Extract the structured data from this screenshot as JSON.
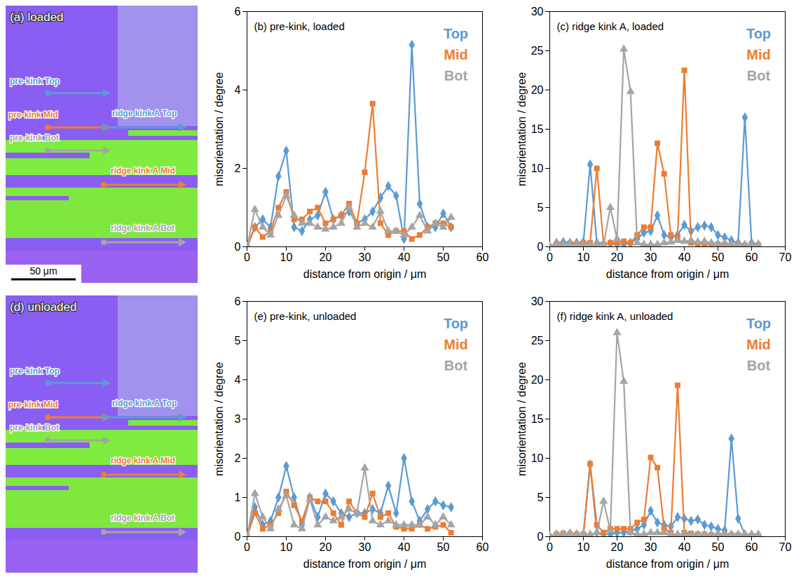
{
  "chart_data": [
    {
      "type": "line",
      "title": "(b) pre-kink, loaded",
      "xlabel": "distance from origin / μm",
      "ylabel": "misorientation / degree",
      "x": [
        0,
        2,
        4,
        6,
        8,
        10,
        12,
        14,
        16,
        18,
        20,
        22,
        24,
        26,
        28,
        30,
        32,
        34,
        36,
        38,
        40,
        42,
        44,
        46,
        48,
        50,
        52
      ],
      "xlim": [
        0,
        60
      ],
      "xticks": [
        0,
        10,
        20,
        30,
        40,
        50,
        60
      ],
      "ylim": [
        0,
        6
      ],
      "yticks": [
        0,
        2,
        4,
        6
      ],
      "grid": false,
      "legend": "top-right",
      "series": [
        {
          "name": "Top",
          "color": "#5b9bd5",
          "marker": "diamond",
          "values": [
            0,
            0.5,
            0.7,
            0.5,
            1.8,
            2.45,
            0.5,
            0.4,
            0.7,
            0.8,
            1.4,
            0.7,
            0.8,
            0.9,
            0.6,
            0.7,
            0.9,
            1.25,
            1.55,
            1.3,
            0.2,
            5.15,
            1.1,
            0.5,
            0.5,
            0.85,
            0.5
          ]
        },
        {
          "name": "Mid",
          "color": "#ed7d31",
          "marker": "square",
          "values": [
            0,
            0.5,
            0.25,
            0.4,
            1.0,
            1.4,
            0.7,
            0.7,
            0.9,
            1.0,
            0.6,
            0.7,
            0.8,
            1.1,
            0.6,
            1.9,
            3.65,
            0.6,
            0.3,
            0.4,
            0.4,
            0.2,
            0.3,
            0.5,
            0.6,
            0.6,
            0.5
          ]
        },
        {
          "name": "Bot",
          "color": "#a5a5a5",
          "marker": "triangle",
          "values": [
            0,
            0.95,
            0.5,
            0.3,
            0.8,
            1.3,
            0.8,
            0.6,
            0.6,
            0.5,
            0.45,
            0.5,
            0.6,
            1.0,
            0.5,
            0.6,
            0.5,
            0.9,
            0.4,
            0.4,
            0.3,
            0.5,
            0.8,
            0.4,
            0.6,
            0.5,
            0.75
          ]
        }
      ]
    },
    {
      "type": "line",
      "title": "(c) ridge kink A, loaded",
      "xlabel": "distance from origin / μm",
      "ylabel": "misorientation / degree",
      "x": [
        0,
        2,
        4,
        6,
        8,
        10,
        12,
        14,
        16,
        18,
        20,
        22,
        24,
        26,
        28,
        30,
        32,
        34,
        36,
        38,
        40,
        42,
        44,
        46,
        48,
        50,
        52,
        54,
        56,
        58,
        60,
        62
      ],
      "xlim": [
        0,
        70
      ],
      "xticks": [
        0,
        10,
        20,
        30,
        40,
        50,
        60,
        70
      ],
      "ylim": [
        0,
        30
      ],
      "yticks": [
        0,
        5,
        10,
        15,
        20,
        25,
        30
      ],
      "grid": false,
      "legend": "top-right",
      "series": [
        {
          "name": "Top",
          "color": "#5b9bd5",
          "marker": "diamond",
          "values": [
            0,
            0.5,
            0.6,
            0.5,
            0.5,
            0.6,
            10.5,
            0.5,
            0.4,
            0.4,
            0.3,
            0.3,
            0.5,
            1.0,
            1.8,
            2.0,
            4.0,
            1.5,
            1.2,
            1.5,
            2.8,
            2.0,
            2.5,
            2.7,
            2.5,
            1.5,
            1.2,
            0.8,
            0.5,
            16.5,
            0.5,
            0.3
          ]
        },
        {
          "name": "Mid",
          "color": "#ed7d31",
          "marker": "square",
          "values": [
            0,
            0.3,
            0.3,
            0.4,
            0.3,
            0.5,
            0.5,
            10,
            0.3,
            0.5,
            0.5,
            0.7,
            0.5,
            1.5,
            2.5,
            2.5,
            13.2,
            9.3,
            1.5,
            1.2,
            22.5,
            0.5,
            0.3,
            0.4,
            0.3,
            0.3,
            0.3,
            0.3,
            0.3,
            0.2,
            0.2,
            0.2
          ]
        },
        {
          "name": "Bot",
          "color": "#a5a5a5",
          "marker": "triangle",
          "values": [
            0,
            0.3,
            0.3,
            0.3,
            0.3,
            0.3,
            0.3,
            0.3,
            0.3,
            5.0,
            1.0,
            25.2,
            19.8,
            0.5,
            0.3,
            0.3,
            0.3,
            0.5,
            0.6,
            0.8,
            0.7,
            0.8,
            0.6,
            0.7,
            0.5,
            0.4,
            0.4,
            0.3,
            0.3,
            0.3,
            0.2,
            0.2
          ]
        }
      ]
    },
    {
      "type": "line",
      "title": "(e) pre-kink, unloaded",
      "xlabel": "distance from origin / μm",
      "ylabel": "misorientation / degree",
      "x": [
        0,
        2,
        4,
        6,
        8,
        10,
        12,
        14,
        16,
        18,
        20,
        22,
        24,
        26,
        28,
        30,
        32,
        34,
        36,
        38,
        40,
        42,
        44,
        46,
        48,
        50,
        52
      ],
      "xlim": [
        0,
        60
      ],
      "xticks": [
        0,
        10,
        20,
        30,
        40,
        50,
        60
      ],
      "ylim": [
        0,
        6
      ],
      "yticks": [
        0,
        1,
        2,
        3,
        4,
        5,
        6
      ],
      "grid": false,
      "legend": "top-right",
      "series": [
        {
          "name": "Top",
          "color": "#5b9bd5",
          "marker": "diamond",
          "values": [
            0,
            0.75,
            0.3,
            0.4,
            1.0,
            1.8,
            1.0,
            0.3,
            1.0,
            0.5,
            1.1,
            0.9,
            0.6,
            0.5,
            0.6,
            0.6,
            0.7,
            0.6,
            1.3,
            0.6,
            2.0,
            0.9,
            0.4,
            0.7,
            0.9,
            0.8,
            0.75
          ]
        },
        {
          "name": "Mid",
          "color": "#ed7d31",
          "marker": "square",
          "values": [
            0,
            0.6,
            0.2,
            0.3,
            0.6,
            1.15,
            0.8,
            0.4,
            1.0,
            0.9,
            0.9,
            0.6,
            0.3,
            0.9,
            0.6,
            0.5,
            1.1,
            0.5,
            0.6,
            0.25,
            0.2,
            0.2,
            0.3,
            0.2,
            0.25,
            0.3,
            0.1
          ]
        },
        {
          "name": "Bot",
          "color": "#a5a5a5",
          "marker": "triangle",
          "values": [
            0,
            1.1,
            0.5,
            0.2,
            0.7,
            1.05,
            0.3,
            0.2,
            0.95,
            0.3,
            0.5,
            0.4,
            0.5,
            0.7,
            0.6,
            1.75,
            0.4,
            0.3,
            0.4,
            0.3,
            0.3,
            0.3,
            0.3,
            0.5,
            0.3,
            0.5,
            0.3
          ]
        }
      ]
    },
    {
      "type": "line",
      "title": "(f) ridge kink A, unloaded",
      "xlabel": "distance from origin / μm",
      "ylabel": "misorientation / degree",
      "x": [
        0,
        2,
        4,
        6,
        8,
        10,
        12,
        14,
        16,
        18,
        20,
        22,
        24,
        26,
        28,
        30,
        32,
        34,
        36,
        38,
        40,
        42,
        44,
        46,
        48,
        50,
        52,
        54,
        56,
        58,
        60,
        62
      ],
      "xlim": [
        0,
        70
      ],
      "xticks": [
        0,
        10,
        20,
        30,
        40,
        50,
        60,
        70
      ],
      "ylim": [
        0,
        30
      ],
      "yticks": [
        0,
        5,
        10,
        15,
        20,
        25,
        30
      ],
      "grid": false,
      "legend": "top-right",
      "series": [
        {
          "name": "Top",
          "color": "#5b9bd5",
          "marker": "diamond",
          "values": [
            0,
            0.3,
            0.3,
            0.4,
            0.3,
            0.3,
            9.2,
            0.5,
            0.3,
            0.3,
            0.5,
            0.5,
            0.7,
            1.0,
            1.5,
            3.3,
            1.8,
            1.5,
            1.3,
            2.5,
            2.3,
            2.0,
            2.2,
            1.5,
            1.3,
            1.0,
            0.8,
            12.5,
            2.3,
            0.3,
            0.2,
            0.2
          ]
        },
        {
          "name": "Mid",
          "color": "#ed7d31",
          "marker": "square",
          "values": [
            0,
            0.3,
            0.4,
            0.3,
            0.3,
            0.3,
            9.3,
            1.5,
            0.5,
            1.0,
            1.0,
            1.0,
            1.0,
            1.8,
            2.2,
            10.1,
            8.8,
            1.0,
            0.5,
            19.3,
            0.5,
            0.4,
            0.3,
            0.3,
            0.2,
            0.2,
            0.2,
            0.2,
            0.2,
            0.1,
            0.1,
            0.1
          ]
        },
        {
          "name": "Bot",
          "color": "#a5a5a5",
          "marker": "triangle",
          "values": [
            0,
            0.3,
            0.3,
            0.3,
            0.3,
            0.3,
            0.3,
            0.5,
            4.5,
            0.8,
            26,
            19.8,
            0.5,
            0.3,
            0.3,
            0.5,
            0.5,
            0.5,
            0.3,
            0.3,
            0.3,
            0.3,
            0.3,
            0.3,
            0.3,
            0.3,
            0.3,
            0.3,
            0.3,
            0.3,
            0.3,
            0.3
          ]
        }
      ]
    }
  ],
  "maps": [
    {
      "label": "(a) loaded",
      "scale_bar": "50 μm",
      "arrows": [
        {
          "label": "pre-kink Top",
          "color": "#5b9bd5"
        },
        {
          "label": "pre-kink Mid",
          "color": "#ed7d31"
        },
        {
          "label": "ridge kink A Top",
          "color": "#5b9bd5"
        },
        {
          "label": "pre-kink Bot",
          "color": "#a5a5a5"
        },
        {
          "label": "ridge kink A Mid",
          "color": "#ed7d31"
        },
        {
          "label": "ridge kink A Bot",
          "color": "#a5a5a5"
        }
      ]
    },
    {
      "label": "(d) unloaded",
      "arrows": [
        {
          "label": "pre-kink Top",
          "color": "#5b9bd5"
        },
        {
          "label": "pre-kink Mid",
          "color": "#ed7d31"
        },
        {
          "label": "ridge kink A Top",
          "color": "#5b9bd5"
        },
        {
          "label": "pre-kink Bot",
          "color": "#a5a5a5"
        },
        {
          "label": "ridge kink A Mid",
          "color": "#ed7d31"
        },
        {
          "label": "ridge kink A Bot",
          "color": "#a5a5a5"
        }
      ]
    }
  ]
}
